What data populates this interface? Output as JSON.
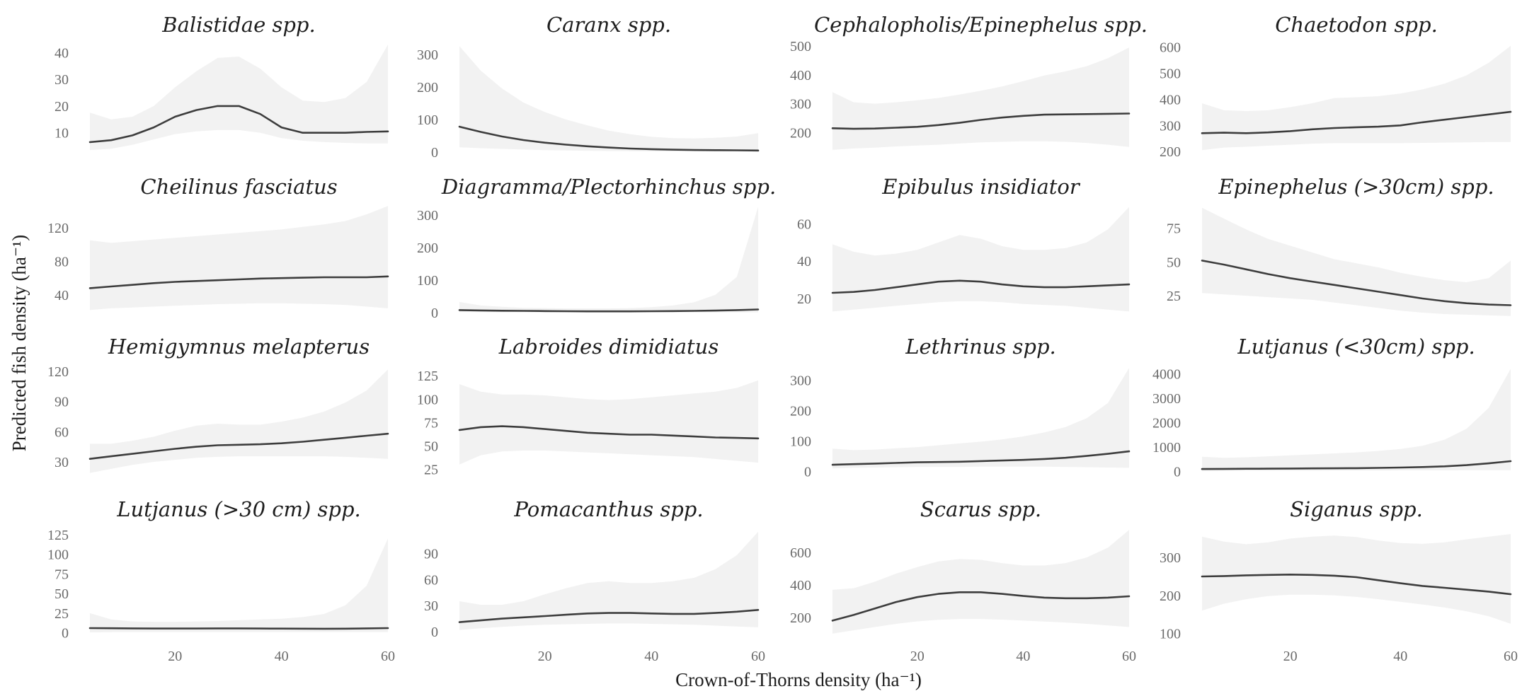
{
  "chart_data": {
    "type": "line",
    "layout": "4x4 small multiples",
    "xlabel": "Crown-of-Thorns density (ha⁻¹)",
    "ylabel": "Predicted fish density (ha⁻¹)",
    "xlim": [
      4,
      60
    ],
    "xticks": [
      20,
      40,
      60
    ],
    "grid": false,
    "legend": "none",
    "colors": {
      "line": "#3d3d3d",
      "band": "#f2f2f2",
      "tick_text": "#6a6a6a"
    },
    "x": [
      4,
      8,
      12,
      16,
      20,
      24,
      28,
      32,
      36,
      40,
      44,
      48,
      52,
      56,
      60
    ],
    "panels": [
      {
        "title": "Balistidae spp.",
        "ylim": [
          2.5,
          43
        ],
        "yticks": [
          10,
          20,
          30,
          40
        ],
        "y": [
          6.5,
          7.2,
          9,
          12,
          16,
          18.5,
          20,
          20,
          17,
          12,
          10,
          10,
          10,
          10.3,
          10.5
        ],
        "lower": [
          3.5,
          4,
          5.5,
          7.5,
          9.5,
          10.5,
          11,
          11,
          10,
          8,
          7,
          6.5,
          6.2,
          6,
          6
        ],
        "upper": [
          17.5,
          15,
          16,
          20,
          27,
          33,
          38,
          38.5,
          34,
          27,
          22,
          21.5,
          23,
          29,
          43
        ]
      },
      {
        "title": "Caranx spp.",
        "ylim": [
          -2,
          330
        ],
        "yticks": [
          0,
          100,
          200,
          300
        ],
        "y": [
          78,
          62,
          48,
          37,
          29,
          23,
          18,
          14,
          11,
          9,
          7.5,
          6.5,
          6,
          5.5,
          5
        ],
        "lower": [
          15,
          12,
          10,
          8,
          6,
          5,
          4,
          3.5,
          3,
          2.5,
          2,
          2,
          2,
          2,
          2
        ],
        "upper": [
          325,
          250,
          195,
          152,
          123,
          100,
          82,
          66,
          55,
          47,
          43,
          42,
          44,
          48,
          58
        ]
      },
      {
        "title": "Cephalopholis/Epinephelus spp.",
        "ylim": [
          130,
          505
        ],
        "yticks": [
          200,
          300,
          400,
          500
        ],
        "y": [
          215,
          213,
          214,
          217,
          220,
          226,
          234,
          244,
          252,
          258,
          262,
          263,
          264,
          265,
          266
        ],
        "lower": [
          140,
          145,
          148,
          152,
          155,
          158,
          162,
          166,
          168,
          170,
          170,
          168,
          164,
          158,
          150
        ],
        "upper": [
          340,
          305,
          300,
          305,
          312,
          320,
          332,
          345,
          360,
          378,
          398,
          412,
          430,
          458,
          495
        ]
      },
      {
        "title": "Chaetodon spp.",
        "ylim": [
          195,
          610
        ],
        "yticks": [
          200,
          300,
          400,
          500,
          600
        ],
        "y": [
          270,
          272,
          270,
          273,
          278,
          285,
          290,
          293,
          295,
          300,
          312,
          322,
          332,
          342,
          352
        ],
        "lower": [
          205,
          215,
          218,
          222,
          226,
          230,
          232,
          232,
          232,
          232,
          233,
          234,
          235,
          236,
          236
        ],
        "upper": [
          385,
          358,
          355,
          358,
          370,
          385,
          405,
          408,
          412,
          422,
          438,
          460,
          492,
          540,
          605
        ]
      },
      {
        "title": "Cheilinus fasciatus",
        "ylim": [
          18,
          147
        ],
        "yticks": [
          40,
          80,
          120
        ],
        "y": [
          48,
          50,
          52,
          54,
          55.5,
          56.5,
          57.5,
          58.5,
          59.5,
          60,
          60.5,
          61,
          61,
          61,
          62
        ],
        "lower": [
          22,
          24,
          25,
          26,
          27,
          28,
          29,
          29.5,
          30,
          30,
          29.5,
          29,
          28,
          26,
          24
        ],
        "upper": [
          105,
          102,
          104,
          106,
          108,
          110,
          112,
          114,
          116,
          118,
          121,
          124,
          128,
          136,
          146
        ]
      },
      {
        "title": "Diagramma/Plectorhinchus spp.",
        "ylim": [
          -2,
          330
        ],
        "yticks": [
          0,
          100,
          200,
          300
        ],
        "y": [
          8,
          7,
          6,
          5.5,
          5,
          4.5,
          4,
          4,
          4,
          4.5,
          5,
          5.5,
          6.5,
          8,
          10
        ],
        "lower": [
          2,
          2,
          1.5,
          1.5,
          1,
          1,
          1,
          1,
          1,
          1,
          1,
          1,
          1,
          1,
          1
        ],
        "upper": [
          33,
          22,
          18,
          15,
          14,
          13,
          13,
          13,
          14,
          17,
          22,
          32,
          55,
          110,
          325
        ]
      },
      {
        "title": "Epibulus insidiator",
        "ylim": [
          12,
          70
        ],
        "yticks": [
          20,
          40,
          60
        ],
        "y": [
          23,
          23.5,
          24.5,
          26,
          27.5,
          29,
          29.5,
          29,
          27.5,
          26.5,
          26,
          26,
          26.5,
          27,
          27.5
        ],
        "lower": [
          13,
          14,
          15,
          16,
          17,
          18,
          18.5,
          18.5,
          18,
          17,
          16.5,
          16,
          15,
          14,
          13
        ],
        "upper": [
          49,
          45,
          43,
          44,
          46,
          50,
          54,
          52,
          48,
          46,
          46,
          47,
          50,
          57,
          69
        ]
      },
      {
        "title": "Epinephelus (>30cm) spp.",
        "ylim": [
          12,
          92
        ],
        "yticks": [
          25,
          50,
          75
        ],
        "y": [
          51,
          48,
          44.5,
          41,
          38,
          35.5,
          33,
          30.5,
          28,
          25.5,
          23,
          21,
          19.5,
          18.5,
          18
        ],
        "lower": [
          27,
          26,
          25,
          24,
          23,
          22,
          20,
          18,
          16,
          14,
          12.5,
          11.5,
          11,
          10.5,
          10
        ],
        "upper": [
          90,
          82,
          74,
          67,
          62,
          57,
          52,
          49,
          46,
          42,
          39,
          36.5,
          35,
          38,
          51
        ]
      },
      {
        "title": "Hemigymnus melapterus",
        "ylim": [
          18,
          125
        ],
        "yticks": [
          30,
          60,
          90,
          120
        ],
        "y": [
          33,
          35.5,
          38,
          40.5,
          43,
          45,
          46.5,
          47,
          47.5,
          48.5,
          50,
          52,
          54,
          56,
          58
        ],
        "lower": [
          19,
          23,
          27,
          30,
          32,
          34,
          35,
          35.5,
          35.5,
          35.5,
          35.5,
          35.5,
          35,
          34,
          33
        ],
        "upper": [
          48,
          48,
          51,
          55,
          61,
          66,
          68,
          67,
          67,
          70,
          74,
          80,
          89,
          101,
          122
        ]
      },
      {
        "title": "Labroides dimidiatus",
        "ylim": [
          20,
          135
        ],
        "yticks": [
          25,
          50,
          75,
          100,
          125
        ],
        "y": [
          67,
          70,
          71,
          70,
          68,
          66,
          64,
          63,
          62,
          62,
          61,
          60,
          59,
          58.5,
          58
        ],
        "lower": [
          30,
          40,
          44,
          45,
          45,
          44,
          43,
          42,
          41,
          40,
          39,
          38,
          36,
          34,
          32
        ],
        "upper": [
          116,
          108,
          105,
          105,
          104,
          102,
          100,
          99,
          100,
          102,
          104,
          106,
          108,
          112,
          120
        ]
      },
      {
        "title": "Lethrinus spp.",
        "ylim": [
          -8,
          345
        ],
        "yticks": [
          0,
          100,
          200,
          300
        ],
        "y": [
          22,
          24,
          26,
          28,
          30,
          31,
          32,
          34,
          36,
          38,
          41,
          45,
          51,
          58,
          66
        ],
        "lower": [
          10,
          12,
          13,
          14,
          15,
          15,
          15,
          16,
          16,
          16,
          16,
          15,
          14,
          13,
          12
        ],
        "upper": [
          75,
          70,
          72,
          76,
          80,
          86,
          92,
          98,
          105,
          115,
          128,
          146,
          175,
          225,
          340
        ]
      },
      {
        "title": "Lutjanus (<30cm) spp.",
        "ylim": [
          -100,
          4300
        ],
        "yticks": [
          0,
          1000,
          2000,
          3000,
          4000
        ],
        "y": [
          100,
          105,
          110,
          115,
          120,
          125,
          130,
          135,
          145,
          160,
          180,
          210,
          260,
          330,
          420
        ],
        "lower": [
          20,
          25,
          28,
          30,
          32,
          34,
          36,
          38,
          40,
          42,
          44,
          46,
          48,
          50,
          52
        ],
        "upper": [
          600,
          560,
          580,
          620,
          660,
          700,
          740,
          780,
          840,
          920,
          1050,
          1300,
          1750,
          2600,
          4200
        ]
      },
      {
        "title": "Lutjanus (>30 cm) spp.",
        "ylim": [
          -3,
          132
        ],
        "yticks": [
          0,
          25,
          50,
          75,
          100,
          125
        ],
        "y": [
          6,
          5.8,
          5.6,
          5.5,
          5.5,
          5.5,
          5.6,
          5.6,
          5.5,
          5.4,
          5.3,
          5.2,
          5.3,
          5.6,
          6
        ],
        "lower": [
          0.5,
          0.8,
          1,
          1,
          1,
          1,
          1,
          1,
          1,
          1,
          1,
          1,
          1,
          1,
          1
        ],
        "upper": [
          25,
          17,
          14.5,
          14,
          14,
          14.5,
          15,
          16,
          17,
          18,
          20,
          24,
          35,
          60,
          120
        ]
      },
      {
        "title": "Pomacanthus spp.",
        "ylim": [
          -4,
          118
        ],
        "yticks": [
          0,
          30,
          60,
          90
        ],
        "y": [
          11,
          13,
          15,
          16.5,
          18,
          19.5,
          21,
          21.5,
          21.5,
          21,
          20.5,
          20.5,
          21.5,
          23,
          25
        ],
        "lower": [
          2,
          4,
          5.5,
          7,
          8,
          8.5,
          9,
          9.5,
          9.5,
          9,
          8.5,
          8,
          7,
          6,
          5
        ],
        "upper": [
          35,
          31,
          31,
          35,
          43,
          50,
          56,
          58,
          56,
          56,
          58,
          62,
          72,
          88,
          115
        ]
      },
      {
        "title": "Scarus spp.",
        "ylim": [
          90,
          745
        ],
        "yticks": [
          200,
          400,
          600
        ],
        "y": [
          180,
          215,
          255,
          295,
          325,
          345,
          355,
          355,
          345,
          332,
          322,
          318,
          318,
          322,
          330
        ],
        "lower": [
          100,
          120,
          140,
          160,
          175,
          185,
          190,
          190,
          186,
          180,
          174,
          168,
          160,
          150,
          140
        ],
        "upper": [
          370,
          380,
          420,
          470,
          510,
          545,
          560,
          555,
          535,
          520,
          520,
          535,
          570,
          630,
          740
        ]
      },
      {
        "title": "Siganus spp.",
        "ylim": [
          95,
          375
        ],
        "yticks": [
          100,
          200,
          300
        ],
        "y": [
          250,
          251,
          253,
          254,
          255,
          254,
          252,
          248,
          240,
          232,
          225,
          220,
          215,
          210,
          203
        ],
        "lower": [
          160,
          178,
          190,
          198,
          202,
          202,
          200,
          196,
          190,
          183,
          176,
          168,
          158,
          145,
          125
        ],
        "upper": [
          355,
          342,
          335,
          340,
          350,
          355,
          358,
          354,
          345,
          338,
          336,
          340,
          348,
          355,
          362
        ]
      }
    ]
  }
}
